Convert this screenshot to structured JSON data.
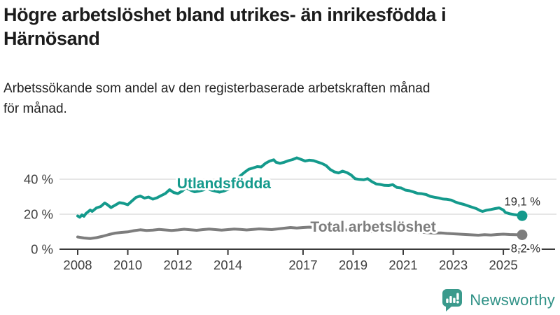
{
  "header": {
    "title": "Högre arbetslöshet bland utrikes- än inrikesfödda i\nHärnösand",
    "subtitle": "Arbetssökande som andel av den registerbaserade arbetskraften månad\nför månad."
  },
  "footer": {
    "brand": "Newsworthy",
    "brand_icon": "newsworthy-bars-speech-bubble-icon"
  },
  "colors": {
    "accent_teal": "#149a8c",
    "total_gray": "#7d7d7d",
    "grid": "#dedede",
    "axis": "#3a3a3a",
    "axis_text": "#404040",
    "value_label_text": "#2b2b2b",
    "brand_teal": "#2f9186",
    "brand_icon_teal": "#3a9a8c"
  },
  "chart_data": {
    "type": "line",
    "title": "Högre arbetslöshet bland utrikes- än inrikesfödda i Härnösand",
    "subtitle": "Arbetssökande som andel av den registerbaserade arbetskraften månad för månad.",
    "x_axis": {
      "ticks": [
        2008,
        2010,
        2012,
        2014,
        2017,
        2019,
        2021,
        2023,
        2025
      ],
      "range": [
        2007.3,
        2026.1
      ]
    },
    "y_axis": {
      "ticks": [
        0,
        20,
        40
      ],
      "tick_suffix": " %",
      "range": [
        0,
        56
      ],
      "grid": true
    },
    "legend_position": "inline-labels",
    "series": [
      {
        "id": "utlandsfodda",
        "name": "Utlandsfödda",
        "color": "#149a8c",
        "end_label": "19,1 %",
        "end_value": 19.1,
        "label_pos": [
          2013.84,
          37.6
        ],
        "end_label_dy": -15,
        "points": [
          [
            2008,
            19
          ],
          [
            2008.08,
            18.3
          ],
          [
            2008.17,
            19.6
          ],
          [
            2008.25,
            18.8
          ],
          [
            2008.33,
            20.4
          ],
          [
            2008.5,
            22.4
          ],
          [
            2008.58,
            21.6
          ],
          [
            2008.75,
            23.6
          ],
          [
            2008.92,
            24.4
          ],
          [
            2009.08,
            26.4
          ],
          [
            2009.17,
            25.6
          ],
          [
            2009.33,
            23.8
          ],
          [
            2009.5,
            25.2
          ],
          [
            2009.67,
            26.6
          ],
          [
            2009.83,
            26.2
          ],
          [
            2010,
            25.4
          ],
          [
            2010.17,
            27.6
          ],
          [
            2010.33,
            29.6
          ],
          [
            2010.5,
            30.4
          ],
          [
            2010.67,
            29.2
          ],
          [
            2010.83,
            29.8
          ],
          [
            2011,
            28.6
          ],
          [
            2011.17,
            29.4
          ],
          [
            2011.33,
            30.6
          ],
          [
            2011.5,
            31.8
          ],
          [
            2011.67,
            34
          ],
          [
            2011.83,
            32.4
          ],
          [
            2012,
            31.8
          ],
          [
            2012.17,
            33.2
          ],
          [
            2012.33,
            35.2
          ],
          [
            2012.5,
            33.8
          ],
          [
            2012.67,
            32.8
          ],
          [
            2012.83,
            33.2
          ],
          [
            2013,
            33.8
          ],
          [
            2013.17,
            34.8
          ],
          [
            2013.33,
            33.8
          ],
          [
            2013.5,
            33.2
          ],
          [
            2013.67,
            32.6
          ],
          [
            2013.83,
            33.2
          ],
          [
            2014,
            34.2
          ],
          [
            2014.17,
            36
          ],
          [
            2014.33,
            39.5
          ],
          [
            2014.5,
            42
          ],
          [
            2014.67,
            44
          ],
          [
            2014.83,
            45.7
          ],
          [
            2015,
            46.4
          ],
          [
            2015.17,
            47.2
          ],
          [
            2015.33,
            47
          ],
          [
            2015.5,
            49.1
          ],
          [
            2015.67,
            50.4
          ],
          [
            2015.83,
            51.1
          ],
          [
            2015.92,
            49.7
          ],
          [
            2016.08,
            49.1
          ],
          [
            2016.25,
            49.7
          ],
          [
            2016.42,
            50.6
          ],
          [
            2016.58,
            51.2
          ],
          [
            2016.75,
            52.2
          ],
          [
            2016.92,
            51.3
          ],
          [
            2017.08,
            50.4
          ],
          [
            2017.25,
            50.9
          ],
          [
            2017.42,
            50.6
          ],
          [
            2017.58,
            49.8
          ],
          [
            2017.75,
            49
          ],
          [
            2017.92,
            47.8
          ],
          [
            2018.08,
            45.6
          ],
          [
            2018.25,
            44.2
          ],
          [
            2018.42,
            43.6
          ],
          [
            2018.58,
            44.6
          ],
          [
            2018.75,
            43.8
          ],
          [
            2018.92,
            42.4
          ],
          [
            2019.08,
            40.3
          ],
          [
            2019.25,
            39.9
          ],
          [
            2019.42,
            39.7
          ],
          [
            2019.58,
            40.3
          ],
          [
            2019.75,
            38.6
          ],
          [
            2019.92,
            37.3
          ],
          [
            2020.08,
            37
          ],
          [
            2020.25,
            36.5
          ],
          [
            2020.42,
            36.4
          ],
          [
            2020.58,
            36.9
          ],
          [
            2020.75,
            35.3
          ],
          [
            2020.92,
            35
          ],
          [
            2021.08,
            33.8
          ],
          [
            2021.25,
            33.4
          ],
          [
            2021.42,
            32.7
          ],
          [
            2021.58,
            31.9
          ],
          [
            2021.75,
            31.7
          ],
          [
            2021.92,
            31.2
          ],
          [
            2022.08,
            30.2
          ],
          [
            2022.25,
            29.7
          ],
          [
            2022.42,
            29.3
          ],
          [
            2022.58,
            28.7
          ],
          [
            2022.75,
            28.5
          ],
          [
            2022.92,
            28.1
          ],
          [
            2023.08,
            27
          ],
          [
            2023.25,
            26.2
          ],
          [
            2023.42,
            25.6
          ],
          [
            2023.58,
            24.8
          ],
          [
            2023.75,
            24
          ],
          [
            2023.92,
            23.2
          ],
          [
            2024.08,
            22
          ],
          [
            2024.17,
            21.6
          ],
          [
            2024.33,
            22.3
          ],
          [
            2024.5,
            22.7
          ],
          [
            2024.67,
            23.2
          ],
          [
            2024.83,
            23.6
          ],
          [
            2025,
            22.4
          ],
          [
            2025.08,
            21
          ],
          [
            2025.25,
            20.3
          ],
          [
            2025.42,
            19.8
          ],
          [
            2025.58,
            19.5
          ],
          [
            2025.75,
            19.1
          ]
        ]
      },
      {
        "id": "total-arbetsloshet",
        "name": "Total arbetslöshet",
        "color": "#7d7d7d",
        "end_label": "8,2 %",
        "end_value": 8.2,
        "label_pos": [
          2019.8,
          12.8
        ],
        "end_label_dy": 25,
        "points": [
          [
            2008,
            7
          ],
          [
            2008.25,
            6.4
          ],
          [
            2008.5,
            6.1
          ],
          [
            2008.75,
            6.6
          ],
          [
            2009,
            7.4
          ],
          [
            2009.25,
            8.4
          ],
          [
            2009.5,
            9.2
          ],
          [
            2009.75,
            9.6
          ],
          [
            2010,
            9.9
          ],
          [
            2010.25,
            10.6
          ],
          [
            2010.5,
            11.1
          ],
          [
            2010.75,
            10.7
          ],
          [
            2011,
            10.9
          ],
          [
            2011.25,
            11.3
          ],
          [
            2011.5,
            11
          ],
          [
            2011.75,
            10.7
          ],
          [
            2012,
            11
          ],
          [
            2012.25,
            11.4
          ],
          [
            2012.5,
            11.1
          ],
          [
            2012.75,
            10.8
          ],
          [
            2013,
            11.2
          ],
          [
            2013.25,
            11.5
          ],
          [
            2013.5,
            11.2
          ],
          [
            2013.75,
            10.9
          ],
          [
            2014,
            11.2
          ],
          [
            2014.25,
            11.5
          ],
          [
            2014.5,
            11.3
          ],
          [
            2014.75,
            11
          ],
          [
            2015,
            11.3
          ],
          [
            2015.25,
            11.6
          ],
          [
            2015.5,
            11.4
          ],
          [
            2015.75,
            11.2
          ],
          [
            2016,
            11.6
          ],
          [
            2016.25,
            12
          ],
          [
            2016.5,
            12.4
          ],
          [
            2016.75,
            12.1
          ],
          [
            2017,
            12.4
          ],
          [
            2017.25,
            12.6
          ],
          [
            2017.5,
            12.3
          ],
          [
            2017.75,
            12
          ],
          [
            2018,
            11.8
          ],
          [
            2018.25,
            11.4
          ],
          [
            2018.5,
            11.2
          ],
          [
            2018.75,
            11
          ],
          [
            2019,
            10.8
          ],
          [
            2019.25,
            10.5
          ],
          [
            2019.5,
            10.3
          ],
          [
            2019.75,
            10.2
          ],
          [
            2020,
            10.4
          ],
          [
            2020.25,
            10.9
          ],
          [
            2020.5,
            11.2
          ],
          [
            2020.75,
            11
          ],
          [
            2021,
            10.7
          ],
          [
            2021.25,
            10.3
          ],
          [
            2021.5,
            10
          ],
          [
            2021.75,
            9.7
          ],
          [
            2022,
            9.4
          ],
          [
            2022.25,
            9.2
          ],
          [
            2022.5,
            9.3
          ],
          [
            2022.75,
            9
          ],
          [
            2023,
            8.8
          ],
          [
            2023.25,
            8.6
          ],
          [
            2023.5,
            8.4
          ],
          [
            2023.75,
            8.2
          ],
          [
            2024,
            8
          ],
          [
            2024.25,
            8.3
          ],
          [
            2024.5,
            8.1
          ],
          [
            2024.75,
            8.4
          ],
          [
            2025,
            8.6
          ],
          [
            2025.25,
            8.4
          ],
          [
            2025.5,
            8.3
          ],
          [
            2025.75,
            8.2
          ]
        ]
      }
    ]
  }
}
